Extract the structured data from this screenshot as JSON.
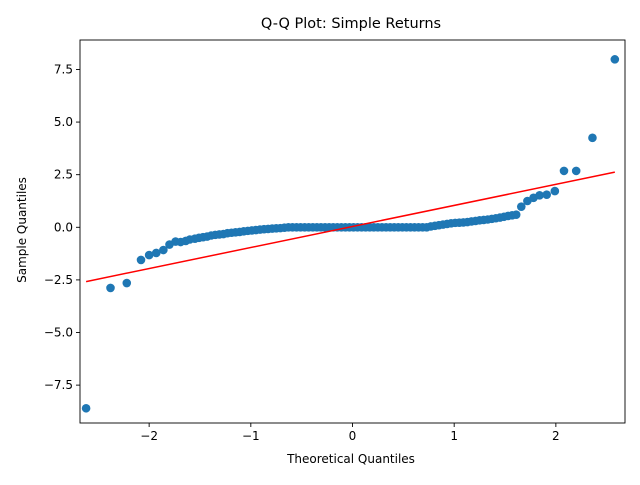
{
  "chart_data": {
    "type": "scatter",
    "title": "Q-Q Plot: Simple Returns",
    "xlabel": "Theoretical Quantiles",
    "ylabel": "Sample Quantiles",
    "xlim": [
      -2.68,
      2.68
    ],
    "ylim": [
      -9.3,
      8.9
    ],
    "x_ticks": [
      -2,
      -1,
      0,
      1,
      2
    ],
    "y_ticks": [
      -7.5,
      -5.0,
      -2.5,
      0.0,
      2.5,
      5.0,
      7.5
    ],
    "x_tick_labels": [
      "−2",
      "−1",
      "0",
      "1",
      "2"
    ],
    "y_tick_labels": [
      "−7.5",
      "−5.0",
      "−2.5",
      "0.0",
      "2.5",
      "5.0",
      "7.5"
    ],
    "grid": false,
    "colors": {
      "points": "#1f77b4",
      "reference_line": "#ff0000"
    },
    "reference_line": {
      "x": [
        -2.62,
        2.58
      ],
      "y": [
        -2.58,
        2.62
      ]
    },
    "series": [
      {
        "points": [
          [
            -2.62,
            -8.6
          ],
          [
            -2.38,
            -2.88
          ],
          [
            -2.22,
            -2.65
          ],
          [
            -2.08,
            -1.55
          ],
          [
            -2.0,
            -1.32
          ],
          [
            -1.93,
            -1.22
          ],
          [
            -1.86,
            -1.08
          ],
          [
            -1.8,
            -0.82
          ],
          [
            -1.74,
            -0.68
          ],
          [
            -1.69,
            -0.7
          ],
          [
            -1.64,
            -0.65
          ],
          [
            -1.6,
            -0.58
          ],
          [
            -1.55,
            -0.54
          ],
          [
            -1.51,
            -0.5
          ],
          [
            -1.47,
            -0.47
          ],
          [
            -1.43,
            -0.44
          ],
          [
            -1.39,
            -0.39
          ],
          [
            -1.35,
            -0.36
          ],
          [
            -1.31,
            -0.34
          ],
          [
            -1.27,
            -0.32
          ],
          [
            -1.23,
            -0.28
          ],
          [
            -1.19,
            -0.26
          ],
          [
            -1.15,
            -0.24
          ],
          [
            -1.11,
            -0.22
          ],
          [
            -1.07,
            -0.19
          ],
          [
            -1.03,
            -0.17
          ],
          [
            -0.99,
            -0.15
          ],
          [
            -0.95,
            -0.13
          ],
          [
            -0.91,
            -0.11
          ],
          [
            -0.87,
            -0.09
          ],
          [
            -0.83,
            -0.08
          ],
          [
            -0.79,
            -0.06
          ],
          [
            -0.75,
            -0.05
          ],
          [
            -0.71,
            -0.04
          ],
          [
            -0.67,
            -0.02
          ],
          [
            -0.63,
            0.0
          ],
          [
            -0.59,
            0.0
          ],
          [
            -0.55,
            0.0
          ],
          [
            -0.51,
            0.0
          ],
          [
            -0.47,
            0.0
          ],
          [
            -0.43,
            0.0
          ],
          [
            -0.39,
            0.0
          ],
          [
            -0.35,
            0.0
          ],
          [
            -0.31,
            0.0
          ],
          [
            -0.27,
            0.0
          ],
          [
            -0.23,
            0.0
          ],
          [
            -0.19,
            0.0
          ],
          [
            -0.15,
            0.0
          ],
          [
            -0.11,
            0.0
          ],
          [
            -0.07,
            0.0
          ],
          [
            -0.03,
            0.0
          ],
          [
            0.01,
            0.0
          ],
          [
            0.05,
            0.0
          ],
          [
            0.09,
            0.0
          ],
          [
            0.13,
            0.0
          ],
          [
            0.17,
            0.0
          ],
          [
            0.21,
            0.0
          ],
          [
            0.25,
            0.0
          ],
          [
            0.29,
            0.0
          ],
          [
            0.33,
            0.0
          ],
          [
            0.37,
            0.0
          ],
          [
            0.41,
            0.0
          ],
          [
            0.45,
            0.0
          ],
          [
            0.49,
            0.0
          ],
          [
            0.53,
            0.0
          ],
          [
            0.57,
            0.0
          ],
          [
            0.61,
            0.0
          ],
          [
            0.65,
            0.0
          ],
          [
            0.69,
            0.0
          ],
          [
            0.73,
            0.0
          ],
          [
            0.77,
            0.04
          ],
          [
            0.81,
            0.07
          ],
          [
            0.85,
            0.1
          ],
          [
            0.89,
            0.13
          ],
          [
            0.93,
            0.16
          ],
          [
            0.97,
            0.19
          ],
          [
            1.01,
            0.21
          ],
          [
            1.05,
            0.22
          ],
          [
            1.09,
            0.23
          ],
          [
            1.13,
            0.25
          ],
          [
            1.17,
            0.28
          ],
          [
            1.21,
            0.3
          ],
          [
            1.25,
            0.33
          ],
          [
            1.29,
            0.35
          ],
          [
            1.33,
            0.37
          ],
          [
            1.37,
            0.4
          ],
          [
            1.41,
            0.43
          ],
          [
            1.45,
            0.46
          ],
          [
            1.49,
            0.5
          ],
          [
            1.53,
            0.54
          ],
          [
            1.57,
            0.57
          ],
          [
            1.61,
            0.6
          ],
          [
            1.66,
            0.98
          ],
          [
            1.72,
            1.25
          ],
          [
            1.78,
            1.4
          ],
          [
            1.84,
            1.52
          ],
          [
            1.91,
            1.55
          ],
          [
            1.99,
            1.72
          ],
          [
            2.08,
            2.68
          ],
          [
            2.2,
            2.68
          ],
          [
            2.36,
            4.25
          ],
          [
            2.58,
            7.98
          ]
        ]
      }
    ]
  }
}
